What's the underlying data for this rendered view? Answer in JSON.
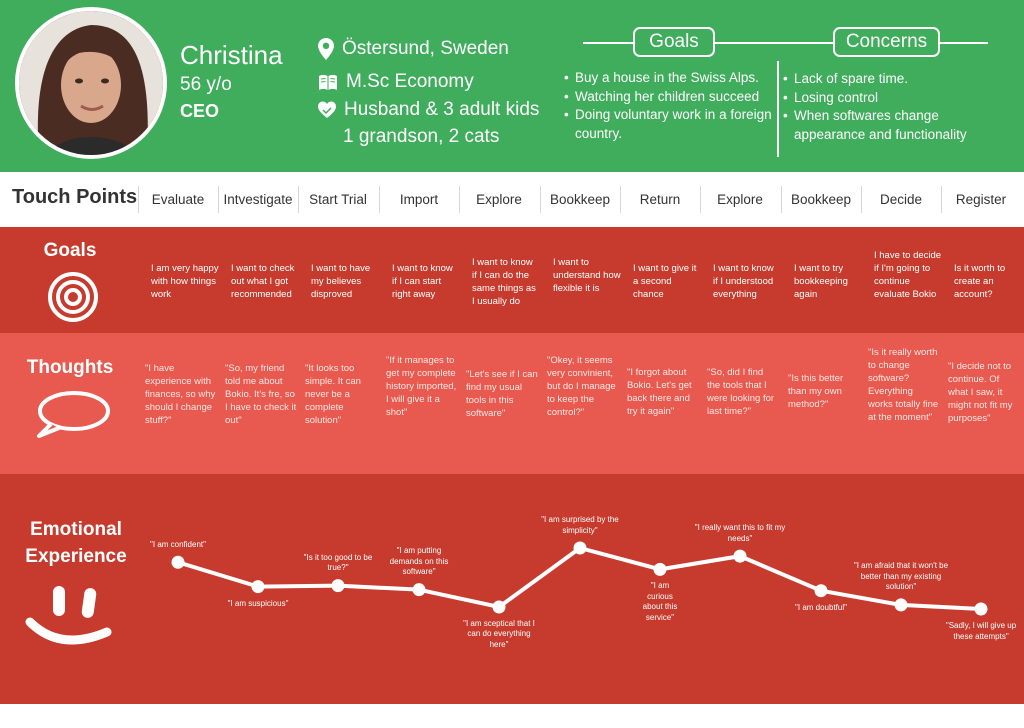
{
  "persona": {
    "name": "Christina",
    "age": "56 y/o",
    "role": "CEO",
    "location": "Östersund, Sweden",
    "education": "M.Sc Economy",
    "family": "Husband & 3 adult kids",
    "family_extra": "1 grandson, 2 cats"
  },
  "goals_section": {
    "title": "Goals",
    "items": [
      "Buy a house in the Swiss Alps.",
      "Watching her children succeed",
      "Doing voluntary work in a foreign country."
    ]
  },
  "concerns_section": {
    "title": "Concerns",
    "items": [
      "Lack of spare time.",
      "Losing control",
      "When softwares change appearance and functionality"
    ]
  },
  "touch_points": {
    "title": "Touch Points",
    "items": [
      "Evaluate",
      "Intvestigate",
      "Start Trial",
      "Import",
      "Explore",
      "Bookkeep",
      "Return",
      "Explore",
      "Bookkeep",
      "Decide",
      "Register"
    ]
  },
  "goals_row": {
    "title": "Goals",
    "cells": [
      "I am very happy with how things work",
      "I want to check out what I got recommended",
      "I want to have my believes disproved",
      "I want to know if I can start right away",
      "I want to know if I can do the same things as I usually do",
      "I want to understand how flexible it is",
      "I want to give it a second chance",
      "I want to know if I understood everything",
      "I want to try bookkeeping again",
      "I have to decide if I'm going to continue evaluate Bokio",
      "Is it worth to create an account?"
    ]
  },
  "thoughts_row": {
    "title": "Thoughts",
    "cells": [
      "\"I have experience with finances, so why should I change stuff?\"",
      "\"So, my friend told me about Bokio. It's fre, so I have to check it out\"",
      "\"It looks too simple. It can never be a complete solution\"",
      "\"If it manages to get my complete history imported, I will give it a shot\"",
      "\"Let's see if I can find my usual tools in this software\"",
      "\"Okey, it seems very convinient, but do I manage to keep the control?\"",
      "\"I forgot about Bokio. Let's get back there and try it again\"",
      "\"So, did I find the tools that I were looking for last time?\"",
      "\"Is this better than my own method?\"",
      "\"Is it really worth to change software? Everything works totally fine at the moment\"",
      "\"I decide not to continue. Of what I saw, it might not fit my purposes\""
    ]
  },
  "emotion_row": {
    "title": "Emotional Experience",
    "points": [
      {
        "label": "\"I am confident\"",
        "level": 0.86
      },
      {
        "label": "\"I am suspicious\"",
        "level": 0.62
      },
      {
        "label": "\"Is it too good to be true?\"",
        "level": 0.63
      },
      {
        "label": "\"I am putting demands on this software\"",
        "level": 0.59
      },
      {
        "label": "\"I am sceptical that I can do everything here\"",
        "level": 0.42
      },
      {
        "label": "\"I am surprised by the simplicity\"",
        "level": 1.0
      },
      {
        "label": "\"I am curious about this service\"",
        "level": 0.79
      },
      {
        "label": "\"I really want this to fit my needs\"",
        "level": 0.92
      },
      {
        "label": "\"I am doubtful\"",
        "level": 0.58
      },
      {
        "label": "\"I am afraid that it won't be better than my existing solution\"",
        "level": 0.44
      },
      {
        "label": "\"Sadly, I will give up these attempts\"",
        "level": 0.4
      }
    ]
  },
  "colors": {
    "header_green": "#3fad5c",
    "dark_red": "#c63b2e",
    "light_red": "#e8594f"
  },
  "icons": [
    "location-pin-icon",
    "book-icon",
    "heart-icon",
    "target-icon",
    "speech-bubble-icon",
    "smiley-icon"
  ]
}
